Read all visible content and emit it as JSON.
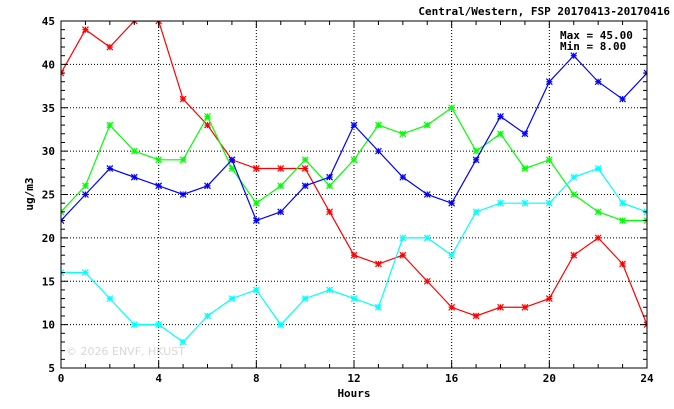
{
  "chart_data": {
    "type": "line",
    "title": "Central/Western, FSP 20170413-20170416",
    "xlabel": "Hours",
    "ylabel": "ug/m3",
    "xlim": [
      0,
      24
    ],
    "ylim": [
      5,
      45
    ],
    "x_ticks": [
      0,
      4,
      8,
      12,
      16,
      20,
      24
    ],
    "y_ticks": [
      5,
      10,
      15,
      20,
      25,
      30,
      35,
      40,
      45
    ],
    "grid": true,
    "stats": {
      "max": "Max = 45.00",
      "min": "Min =  8.00"
    },
    "watermark": "© 2026  ENVF, HKUST",
    "x": [
      0,
      1,
      2,
      3,
      4,
      5,
      6,
      7,
      8,
      9,
      10,
      11,
      12,
      13,
      14,
      15,
      16,
      17,
      18,
      19,
      20,
      21,
      22,
      23,
      24
    ],
    "series": [
      {
        "color": "#ff0000",
        "values": [
          39,
          44,
          42,
          45,
          45,
          36,
          33,
          29,
          28,
          28,
          28,
          23,
          18,
          17,
          18,
          15,
          12,
          11,
          12,
          12,
          13,
          18,
          20,
          17,
          10
        ]
      },
      {
        "color": "#00ff00",
        "values": [
          23,
          26,
          33,
          30,
          29,
          29,
          34,
          28,
          24,
          26,
          29,
          26,
          29,
          33,
          32,
          33,
          35,
          30,
          32,
          28,
          29,
          25,
          23,
          22,
          22
        ]
      },
      {
        "color": "#0000ff",
        "values": [
          22,
          25,
          28,
          27,
          26,
          25,
          26,
          29,
          22,
          23,
          26,
          27,
          33,
          30,
          27,
          25,
          24,
          29,
          34,
          32,
          38,
          41,
          38,
          36,
          39
        ]
      },
      {
        "color": "#00ffff",
        "values": [
          16,
          16,
          13,
          10,
          10,
          8,
          11,
          13,
          14,
          10,
          13,
          14,
          13,
          12,
          20,
          20,
          18,
          23,
          24,
          24,
          24,
          27,
          28,
          24,
          23
        ]
      }
    ]
  }
}
